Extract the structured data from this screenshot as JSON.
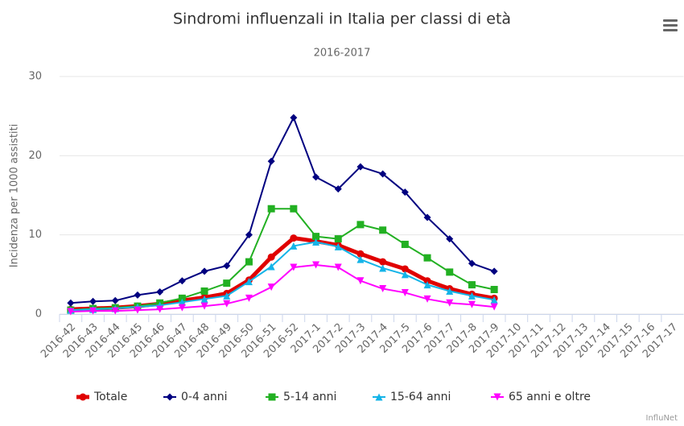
{
  "chart_data": {
    "type": "line",
    "title": "Sindromi influenzali in Italia per classi di età",
    "subtitle": "2016-2017",
    "y_axis_label": "Incidenza per 1000 assistiti",
    "credits": "InfluNet",
    "categories": [
      "2016-42",
      "2016-43",
      "2016-44",
      "2016-45",
      "2016-46",
      "2016-47",
      "2016-48",
      "2016-49",
      "2016-50",
      "2016-51",
      "2016-52",
      "2017-1",
      "2017-2",
      "2017-3",
      "2017-4",
      "2017-5",
      "2017-6",
      "2017-7",
      "2017-8",
      "2017-9",
      "2017-10",
      "2017-11",
      "2017-12",
      "2017-13",
      "2017-14",
      "2017-15",
      "2017-16",
      "2017-17"
    ],
    "series": [
      {
        "name": "Totale",
        "color": "#e00000",
        "marker": "circle",
        "line_width": 5,
        "values": [
          0.6,
          0.7,
          0.8,
          1.0,
          1.3,
          1.7,
          2.1,
          2.6,
          4.3,
          7.2,
          9.6,
          9.2,
          8.7,
          7.6,
          6.6,
          5.7,
          4.2,
          3.2,
          2.5,
          2.0,
          null,
          null,
          null,
          null,
          null,
          null,
          null,
          null
        ]
      },
      {
        "name": "0-4 anni",
        "color": "#000080",
        "marker": "diamond",
        "line_width": 2,
        "values": [
          1.4,
          1.6,
          1.7,
          2.4,
          2.8,
          4.2,
          5.4,
          6.1,
          10.0,
          19.3,
          24.8,
          17.3,
          15.8,
          18.6,
          17.7,
          15.4,
          12.2,
          9.5,
          6.4,
          5.4,
          null,
          null,
          null,
          null,
          null,
          null,
          null,
          null
        ]
      },
      {
        "name": "5-14 anni",
        "color": "#22b022",
        "marker": "square",
        "line_width": 2,
        "values": [
          0.5,
          0.7,
          0.8,
          1.0,
          1.4,
          2.0,
          2.9,
          3.9,
          6.6,
          13.3,
          13.3,
          9.8,
          9.5,
          11.3,
          10.6,
          8.8,
          7.1,
          5.3,
          3.7,
          3.1,
          null,
          null,
          null,
          null,
          null,
          null,
          null,
          null
        ]
      },
      {
        "name": "15-64 anni",
        "color": "#14b4e8",
        "marker": "triangle",
        "line_width": 2,
        "values": [
          0.5,
          0.6,
          0.7,
          0.9,
          1.1,
          1.5,
          1.9,
          2.3,
          4.1,
          6.0,
          8.6,
          9.1,
          8.5,
          6.9,
          5.8,
          5.0,
          3.7,
          2.9,
          2.3,
          1.8,
          null,
          null,
          null,
          null,
          null,
          null,
          null,
          null
        ]
      },
      {
        "name": "65 anni e oltre",
        "color": "#ff00ff",
        "marker": "triangle-down",
        "line_width": 2,
        "values": [
          0.3,
          0.4,
          0.4,
          0.5,
          0.6,
          0.8,
          1.0,
          1.3,
          2.0,
          3.4,
          5.9,
          6.2,
          5.9,
          4.2,
          3.2,
          2.7,
          1.9,
          1.4,
          1.2,
          0.9,
          null,
          null,
          null,
          null,
          null,
          null,
          null,
          null
        ]
      }
    ],
    "ylim": [
      0,
      30
    ],
    "yticks": [
      0,
      10,
      20,
      30
    ],
    "grid": true,
    "legend": "bottom"
  }
}
